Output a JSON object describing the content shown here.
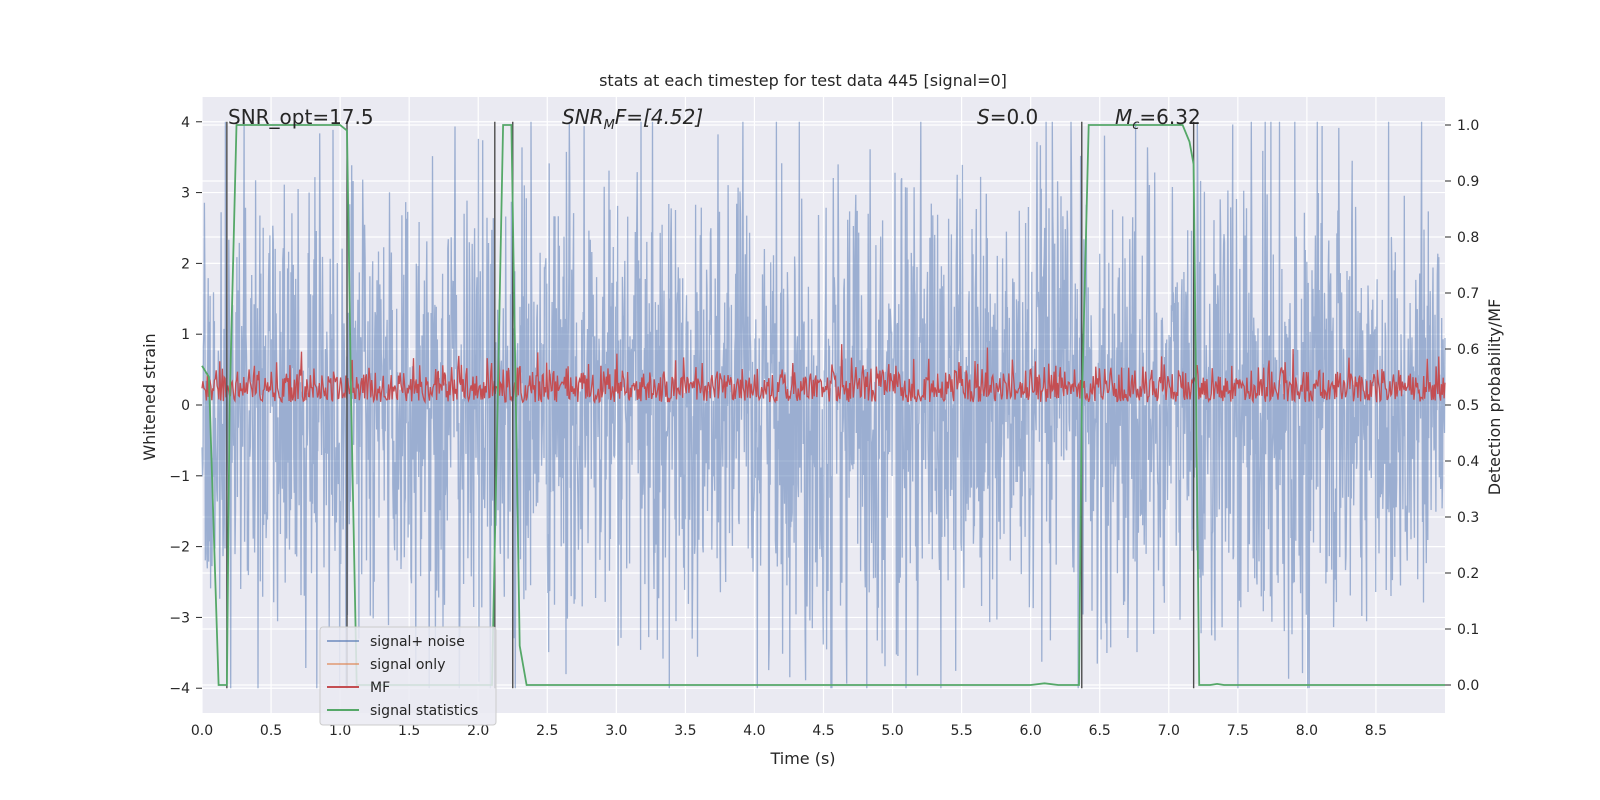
{
  "chart_data": {
    "type": "line",
    "title": "stats at each timestep for test data 445 [signal=0]",
    "xlabel": "Time (s)",
    "ylabel": "Whitened strain",
    "y2label": "Detection probability/MF",
    "xlim": [
      0,
      9.0
    ],
    "ylim": [
      -4.35,
      4.35
    ],
    "y2lim": [
      -0.05,
      1.05
    ],
    "xticks": [
      "0.0",
      "0.5",
      "1.0",
      "1.5",
      "2.0",
      "2.5",
      "3.0",
      "3.5",
      "4.0",
      "4.5",
      "5.0",
      "5.5",
      "6.0",
      "6.5",
      "7.0",
      "7.5",
      "8.0",
      "8.5"
    ],
    "yticks": [
      "4",
      "3",
      "2",
      "1",
      "0",
      "−1",
      "−2",
      "−3",
      "−4"
    ],
    "y2ticks": [
      "1.0",
      "0.9",
      "0.8",
      "0.7",
      "0.6",
      "0.5",
      "0.4",
      "0.3",
      "0.2",
      "0.1",
      "0.0"
    ],
    "grid": true,
    "legend_position": "lower-left",
    "annotations": {
      "snr_opt": "SNR_opt=17.5",
      "snr_mf_label": "SNR",
      "snr_mf_sub": "M",
      "snr_mf_value": "F=[4.52]",
      "s_label": "S",
      "s_value": "=0.0",
      "mc_label": "M",
      "mc_sub": "c",
      "mc_value": "=6.32"
    },
    "vertical_lines": [
      0.18,
      1.05,
      2.12,
      2.25,
      6.37,
      7.18
    ],
    "series": [
      {
        "name": "signal+ noise",
        "color": "#4c72b0",
        "axis": "left",
        "description_values": "noise",
        "amplitude_envelope": {
          "mean": 0,
          "typical": 2.2,
          "max": 4.0,
          "min": -4.0
        }
      },
      {
        "name": "signal only",
        "color": "#dd8452",
        "axis": "left",
        "values": []
      },
      {
        "name": "MF",
        "color": "#c44e52",
        "axis": "right",
        "amplitude_envelope": {
          "mean": 0.53,
          "low": 0.505,
          "high": 0.585,
          "max": 0.62
        }
      },
      {
        "name": "signal statistics",
        "color": "#55a868",
        "axis": "right",
        "x": [
          0.0,
          0.05,
          0.12,
          0.18,
          0.2,
          0.25,
          1.0,
          1.05,
          1.08,
          1.12,
          1.15,
          2.0,
          2.1,
          2.14,
          2.18,
          2.2,
          2.24,
          2.3,
          2.35,
          2.5,
          6.0,
          6.1,
          6.2,
          6.35,
          6.37,
          6.42,
          6.5,
          7.1,
          7.15,
          7.18,
          7.22,
          7.3,
          7.35,
          7.4,
          7.5,
          8.5,
          8.7,
          9.0
        ],
        "values": [
          0.57,
          0.55,
          0.0,
          0.0,
          0.5,
          1.0,
          1.0,
          0.99,
          0.5,
          0.0,
          0.0,
          0.0,
          0.0,
          0.5,
          1.0,
          1.0,
          1.0,
          0.07,
          0.0,
          0.0,
          0.0,
          0.003,
          0.0,
          0.0,
          0.5,
          1.0,
          1.0,
          1.0,
          0.97,
          0.93,
          0.0,
          0.0,
          0.002,
          0.0,
          0.0,
          0.0,
          0.0,
          0.0
        ]
      }
    ]
  },
  "colors": {
    "plot_background": "#eaeaf2",
    "grid": "#ffffff",
    "vline": "#4d4d4d"
  }
}
